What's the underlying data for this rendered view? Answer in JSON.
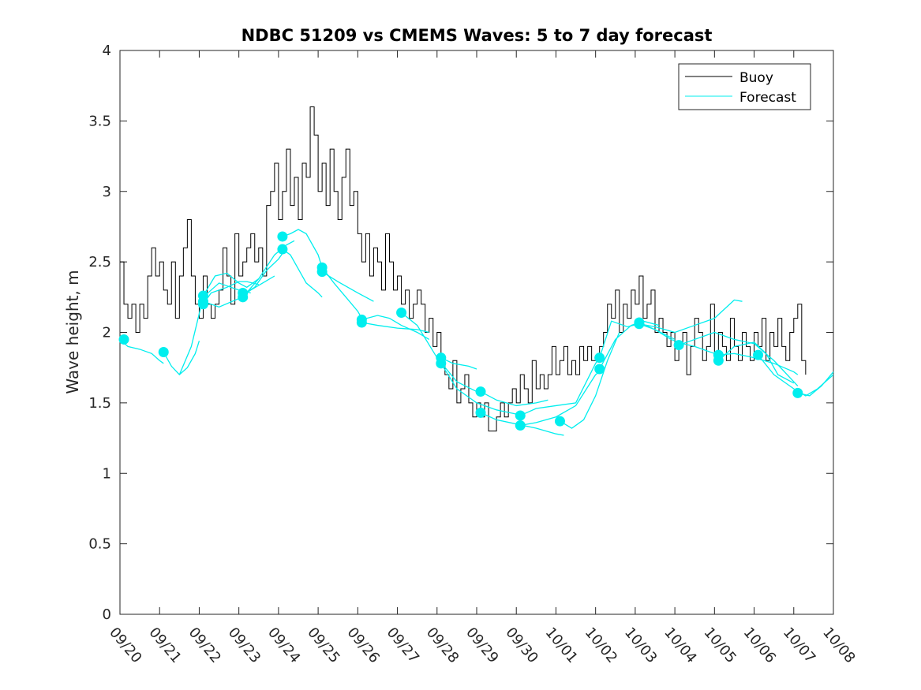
{
  "chart_data": {
    "type": "line",
    "title": "NDBC 51209 vs CMEMS Waves: 5 to 7 day forecast",
    "xlabel": "",
    "ylabel": "Wave height, m",
    "xlim": [
      0,
      18
    ],
    "ylim": [
      0,
      4
    ],
    "yticks": [
      0,
      0.5,
      1,
      1.5,
      2,
      2.5,
      3,
      3.5,
      4
    ],
    "ytick_labels": [
      "0",
      "0.5",
      "1",
      "1.5",
      "2",
      "2.5",
      "3",
      "3.5",
      "4"
    ],
    "xticks": [
      0,
      1,
      2,
      3,
      4,
      5,
      6,
      7,
      8,
      9,
      10,
      11,
      12,
      13,
      14,
      15,
      16,
      17,
      18
    ],
    "xtick_labels": [
      "09/20",
      "09/21",
      "09/22",
      "09/23",
      "09/24",
      "09/25",
      "09/26",
      "09/27",
      "09/28",
      "09/29",
      "09/30",
      "10/01",
      "10/02",
      "10/03",
      "10/04",
      "10/05",
      "10/06",
      "10/07",
      "10/08"
    ],
    "x_unit": "days since 09/20",
    "grid": false,
    "legend_position": "top-right",
    "legend": [
      "Buoy",
      "Forecast"
    ],
    "colors": {
      "buoy": "#000000",
      "forecast": "#00eeee",
      "axis": "#262626"
    },
    "buoy": {
      "name": "Buoy",
      "x": [
        0,
        0.1,
        0.2,
        0.3,
        0.4,
        0.5,
        0.6,
        0.7,
        0.8,
        0.9,
        1.0,
        1.1,
        1.2,
        1.3,
        1.4,
        1.5,
        1.6,
        1.7,
        1.8,
        1.9,
        2.0,
        2.1,
        2.2,
        2.3,
        2.4,
        2.5,
        2.6,
        2.7,
        2.8,
        2.9,
        3.0,
        3.1,
        3.2,
        3.3,
        3.4,
        3.5,
        3.6,
        3.7,
        3.8,
        3.9,
        4.0,
        4.1,
        4.2,
        4.3,
        4.4,
        4.5,
        4.6,
        4.7,
        4.8,
        4.9,
        5.0,
        5.1,
        5.2,
        5.3,
        5.4,
        5.5,
        5.6,
        5.7,
        5.8,
        5.9,
        6.0,
        6.1,
        6.2,
        6.3,
        6.4,
        6.5,
        6.6,
        6.7,
        6.8,
        6.9,
        7.0,
        7.1,
        7.2,
        7.3,
        7.4,
        7.5,
        7.6,
        7.7,
        7.8,
        7.9,
        8.0,
        8.1,
        8.2,
        8.3,
        8.4,
        8.5,
        8.6,
        8.7,
        8.8,
        8.9,
        9.0,
        9.1,
        9.2,
        9.3,
        9.4,
        9.5,
        9.6,
        9.7,
        9.8,
        9.9,
        10.0,
        10.1,
        10.2,
        10.3,
        10.4,
        10.5,
        10.6,
        10.7,
        10.8,
        10.9,
        11.0,
        11.1,
        11.2,
        11.3,
        11.4,
        11.5,
        11.6,
        11.7,
        11.8,
        11.9,
        12.0,
        12.1,
        12.2,
        12.3,
        12.4,
        12.5,
        12.6,
        12.7,
        12.8,
        12.9,
        13.0,
        13.1,
        13.2,
        13.3,
        13.4,
        13.5,
        13.6,
        13.7,
        13.8,
        13.9,
        14.0,
        14.1,
        14.2,
        14.3,
        14.4,
        14.5,
        14.6,
        14.7,
        14.8,
        14.9,
        15.0,
        15.1,
        15.2,
        15.3,
        15.4,
        15.5,
        15.6,
        15.7,
        15.8,
        15.9,
        16.0,
        16.1,
        16.2,
        16.3,
        16.4,
        16.5,
        16.6,
        16.7,
        16.8,
        16.9,
        17.0,
        17.1,
        17.2,
        17.3
      ],
      "values": [
        2.5,
        2.2,
        2.1,
        2.2,
        2.0,
        2.2,
        2.1,
        2.4,
        2.6,
        2.4,
        2.5,
        2.3,
        2.2,
        2.5,
        2.1,
        2.4,
        2.6,
        2.8,
        2.4,
        2.2,
        2.1,
        2.4,
        2.2,
        2.1,
        2.2,
        2.3,
        2.6,
        2.4,
        2.2,
        2.7,
        2.4,
        2.5,
        2.6,
        2.7,
        2.5,
        2.6,
        2.4,
        2.9,
        3.0,
        3.2,
        2.8,
        3.0,
        3.3,
        2.9,
        3.1,
        2.8,
        3.2,
        3.1,
        3.6,
        3.4,
        3.0,
        3.2,
        2.9,
        3.3,
        3.0,
        2.8,
        3.1,
        3.3,
        2.9,
        3.0,
        2.7,
        2.5,
        2.7,
        2.4,
        2.6,
        2.5,
        2.3,
        2.7,
        2.5,
        2.3,
        2.4,
        2.2,
        2.3,
        2.1,
        2.2,
        2.3,
        2.2,
        2.0,
        2.1,
        1.9,
        2.0,
        1.8,
        1.7,
        1.6,
        1.8,
        1.5,
        1.6,
        1.7,
        1.5,
        1.4,
        1.5,
        1.4,
        1.5,
        1.3,
        1.3,
        1.4,
        1.5,
        1.4,
        1.5,
        1.6,
        1.5,
        1.7,
        1.6,
        1.5,
        1.8,
        1.6,
        1.7,
        1.6,
        1.7,
        1.9,
        1.7,
        1.8,
        1.9,
        1.7,
        1.8,
        1.7,
        1.9,
        1.8,
        1.9,
        1.8,
        1.8,
        1.9,
        2.0,
        2.2,
        2.1,
        2.3,
        2.0,
        2.2,
        2.1,
        2.3,
        2.2,
        2.4,
        2.1,
        2.2,
        2.3,
        2.0,
        2.1,
        2.0,
        1.9,
        2.0,
        1.8,
        1.9,
        2.0,
        1.7,
        1.9,
        2.1,
        2.0,
        1.8,
        1.9,
        2.2,
        1.8,
        2.0,
        1.9,
        1.8,
        2.1,
        1.9,
        1.8,
        2.0,
        1.9,
        1.8,
        2.0,
        1.9,
        2.1,
        1.8,
        2.0,
        1.9,
        2.1,
        1.9,
        1.8,
        2.0,
        2.1,
        2.2,
        1.8,
        1.7
      ]
    },
    "forecast": {
      "name": "Forecast",
      "series": [
        {
          "x": [
            0.0,
            0.2,
            0.5,
            0.8,
            1.0,
            1.1
          ],
          "values": [
            1.95,
            1.9,
            1.88,
            1.85,
            1.8,
            1.78
          ]
        },
        {
          "x": [
            1.1,
            1.3,
            1.5,
            1.7,
            1.9,
            2.0
          ],
          "values": [
            1.86,
            1.76,
            1.7,
            1.75,
            1.85,
            1.94
          ]
        },
        {
          "x": [
            1.5,
            1.8,
            2.1,
            2.5,
            3.0,
            3.3
          ],
          "values": [
            1.7,
            1.9,
            2.25,
            2.35,
            2.3,
            2.28
          ]
        },
        {
          "x": [
            2.1,
            2.4,
            2.7,
            3.0,
            3.2,
            3.5
          ],
          "values": [
            2.26,
            2.4,
            2.42,
            2.35,
            2.32,
            2.38
          ]
        },
        {
          "x": [
            2.1,
            2.3,
            2.5,
            2.7,
            3.0,
            3.2,
            3.5
          ],
          "values": [
            2.2,
            2.28,
            2.3,
            2.32,
            2.36,
            2.36,
            2.34
          ]
        },
        {
          "x": [
            2.1,
            2.5,
            3.0,
            3.3,
            3.6,
            3.9
          ],
          "values": [
            2.22,
            2.18,
            2.24,
            2.3,
            2.35,
            2.4
          ]
        },
        {
          "x": [
            3.1,
            3.5,
            3.9,
            4.2,
            4.4
          ],
          "values": [
            2.25,
            2.38,
            2.55,
            2.62,
            2.65
          ]
        },
        {
          "x": [
            3.1,
            3.4,
            3.7,
            4.0,
            4.2
          ],
          "values": [
            2.27,
            2.32,
            2.44,
            2.52,
            2.6
          ]
        },
        {
          "x": [
            4.1,
            4.3,
            4.5,
            4.7,
            5.0,
            5.1
          ],
          "values": [
            2.68,
            2.7,
            2.73,
            2.7,
            2.55,
            2.46
          ]
        },
        {
          "x": [
            4.1,
            4.3,
            4.5,
            4.7,
            5.0,
            5.1
          ],
          "values": [
            2.59,
            2.55,
            2.45,
            2.35,
            2.28,
            2.25
          ]
        },
        {
          "x": [
            5.1,
            5.4,
            5.7,
            6.0,
            6.1
          ],
          "values": [
            2.46,
            2.35,
            2.25,
            2.15,
            2.1
          ]
        },
        {
          "x": [
            5.1,
            5.5,
            6.0,
            6.2,
            6.4
          ],
          "values": [
            2.43,
            2.36,
            2.28,
            2.25,
            2.22
          ]
        },
        {
          "x": [
            6.1,
            6.5,
            6.8,
            7.1,
            7.5,
            7.8
          ],
          "values": [
            2.09,
            2.12,
            2.1,
            2.05,
            2.0,
            1.95
          ]
        },
        {
          "x": [
            6.1,
            6.5,
            7.0,
            7.5,
            7.8
          ],
          "values": [
            2.07,
            2.05,
            2.03,
            2.02,
            2.0
          ]
        },
        {
          "x": [
            7.1,
            7.5,
            8.0,
            8.5,
            9.0
          ],
          "values": [
            2.14,
            2.05,
            1.82,
            1.65,
            1.58
          ]
        },
        {
          "x": [
            8.1,
            8.4,
            8.8,
            9.0
          ],
          "values": [
            1.82,
            1.78,
            1.76,
            1.74
          ]
        },
        {
          "x": [
            8.1,
            8.5,
            9.0,
            9.5,
            10.0,
            10.1
          ],
          "values": [
            1.78,
            1.6,
            1.5,
            1.45,
            1.42,
            1.41
          ]
        },
        {
          "x": [
            9.1,
            9.5,
            10.0,
            10.5,
            10.8
          ],
          "values": [
            1.58,
            1.52,
            1.48,
            1.5,
            1.52
          ]
        },
        {
          "x": [
            9.1,
            9.5,
            10.0,
            10.5,
            11.0,
            11.2
          ],
          "values": [
            1.43,
            1.38,
            1.35,
            1.32,
            1.28,
            1.27
          ]
        },
        {
          "x": [
            10.1,
            10.5,
            11.0,
            11.5,
            12.0,
            12.1
          ],
          "values": [
            1.41,
            1.46,
            1.48,
            1.5,
            1.78,
            1.82
          ]
        },
        {
          "x": [
            10.1,
            10.5,
            11.0,
            11.5,
            12.0,
            12.2
          ],
          "values": [
            1.34,
            1.36,
            1.4,
            1.48,
            1.7,
            1.74
          ]
        },
        {
          "x": [
            11.1,
            11.4,
            11.7,
            12.0,
            12.3,
            12.6
          ],
          "values": [
            1.37,
            1.32,
            1.38,
            1.55,
            1.8,
            2.0
          ]
        },
        {
          "x": [
            12.1,
            12.4,
            12.8,
            13.1,
            13.5,
            14.0
          ],
          "values": [
            1.82,
            2.08,
            2.04,
            2.06,
            2.02,
            1.95
          ]
        },
        {
          "x": [
            12.1,
            12.5,
            12.9,
            13.2,
            13.6
          ],
          "values": [
            1.74,
            1.95,
            2.05,
            2.08,
            2.05
          ]
        },
        {
          "x": [
            13.1,
            13.5,
            13.9,
            14.2,
            14.5,
            15.0
          ],
          "values": [
            2.07,
            2.02,
            1.95,
            1.92,
            1.9,
            1.85
          ]
        },
        {
          "x": [
            13.1,
            13.5,
            14.0,
            14.5,
            15.0,
            15.5,
            15.7
          ],
          "values": [
            2.06,
            2.04,
            2.0,
            2.05,
            2.1,
            2.23,
            2.22
          ]
        },
        {
          "x": [
            14.1,
            14.5,
            15.0,
            15.5,
            16.0,
            16.5,
            17.0,
            17.1
          ],
          "values": [
            1.91,
            1.95,
            2.0,
            1.95,
            1.92,
            1.8,
            1.65,
            1.62
          ]
        },
        {
          "x": [
            15.1,
            15.5,
            16.0,
            16.5,
            17.0,
            17.1
          ],
          "values": [
            1.84,
            1.85,
            1.82,
            1.78,
            1.72,
            1.7
          ]
        },
        {
          "x": [
            15.1,
            15.5,
            16.0,
            16.3,
            16.6,
            17.0
          ],
          "values": [
            1.8,
            1.9,
            1.93,
            1.85,
            1.7,
            1.64
          ]
        },
        {
          "x": [
            16.1,
            16.5,
            17.0,
            17.3,
            17.6,
            18.0
          ],
          "values": [
            1.84,
            1.7,
            1.6,
            1.55,
            1.6,
            1.7
          ]
        },
        {
          "x": [
            17.1,
            17.4,
            17.7,
            18.0
          ],
          "values": [
            1.57,
            1.55,
            1.62,
            1.72
          ]
        }
      ],
      "markers": {
        "x": [
          0.1,
          1.1,
          2.1,
          2.1,
          2.1,
          3.1,
          3.1,
          4.1,
          4.1,
          5.1,
          5.1,
          6.1,
          6.1,
          7.1,
          8.1,
          8.1,
          9.1,
          9.1,
          10.1,
          10.1,
          11.1,
          12.1,
          12.1,
          13.1,
          13.1,
          14.1,
          15.1,
          15.1,
          16.1,
          17.1
        ],
        "values": [
          1.95,
          1.86,
          2.26,
          2.22,
          2.2,
          2.28,
          2.25,
          2.68,
          2.59,
          2.46,
          2.43,
          2.09,
          2.07,
          2.14,
          1.82,
          1.78,
          1.58,
          1.43,
          1.41,
          1.34,
          1.37,
          1.82,
          1.74,
          2.07,
          2.06,
          1.91,
          1.84,
          1.8,
          1.84,
          1.57
        ]
      }
    }
  }
}
